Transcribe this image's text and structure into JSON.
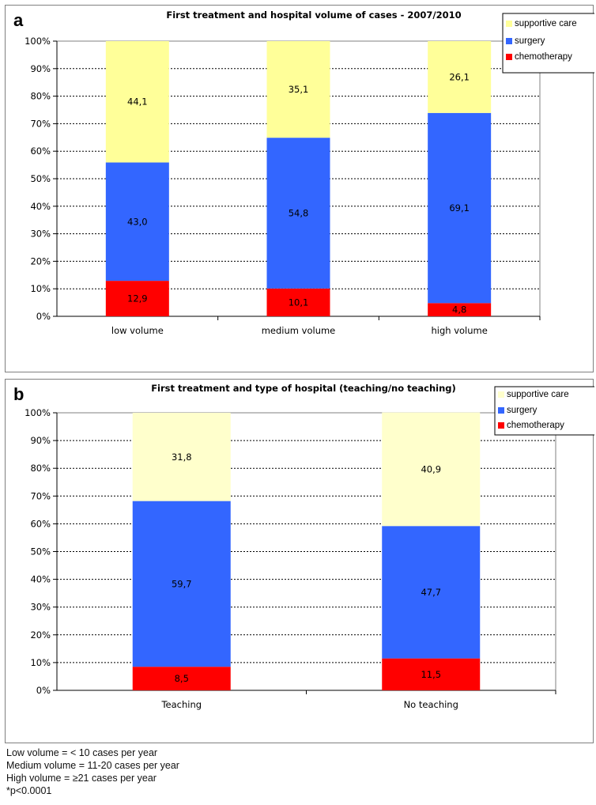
{
  "chart_data": [
    {
      "panel_letter": "a",
      "type": "bar",
      "stacked": true,
      "percent": true,
      "title": "First treatment and hospital volume of cases - 2007/2010",
      "categories": [
        "low volume",
        "medium volume",
        "high volume"
      ],
      "series": [
        {
          "name": "chemotherapy",
          "color": "#ff0000",
          "values": [
            12.9,
            10.1,
            4.8
          ],
          "labels": [
            "12,9",
            "10,1",
            "4,8"
          ]
        },
        {
          "name": "surgery",
          "color": "#3366ff",
          "values": [
            43.0,
            54.8,
            69.1
          ],
          "labels": [
            "43,0",
            "54,8",
            "69,1"
          ]
        },
        {
          "name": "supportive care",
          "color": "#ffff99",
          "values": [
            44.1,
            35.1,
            26.1
          ],
          "labels": [
            "44,1",
            "35,1",
            "26,1"
          ]
        }
      ],
      "legend_items": [
        "supportive care",
        "surgery",
        "chemotherapy"
      ],
      "yticks": [
        "0%",
        "10%",
        "20%",
        "30%",
        "40%",
        "50%",
        "60%",
        "70%",
        "80%",
        "90%",
        "100%"
      ],
      "ylim": [
        0,
        100
      ],
      "grid": true,
      "legend_position": "top-right"
    },
    {
      "panel_letter": "b",
      "type": "bar",
      "stacked": true,
      "percent": true,
      "title": "First treatment and type of hospital (teaching/no teaching)",
      "categories": [
        "Teaching",
        "No teaching"
      ],
      "series": [
        {
          "name": "chemotherapy",
          "color": "#ff0000",
          "values": [
            8.5,
            11.5
          ],
          "labels": [
            "8,5",
            "11,5"
          ]
        },
        {
          "name": "surgery",
          "color": "#3366ff",
          "values": [
            59.7,
            47.7
          ],
          "labels": [
            "59,7",
            "47,7"
          ]
        },
        {
          "name": "supportive care",
          "color": "#ffffcc",
          "values": [
            31.8,
            40.9
          ],
          "labels": [
            "31,8",
            "40,9"
          ]
        }
      ],
      "legend_items": [
        "supportive care",
        "surgery",
        "chemotherapy"
      ],
      "yticks": [
        "0%",
        "10%",
        "20%",
        "30%",
        "40%",
        "50%",
        "60%",
        "70%",
        "80%",
        "90%",
        "100%"
      ],
      "ylim": [
        0,
        100
      ],
      "grid": true,
      "legend_position": "top-right"
    }
  ],
  "footnotes": [
    "Low volume = < 10 cases per year",
    "Medium volume = 11-20 cases per year",
    "High volume = ≥21 cases per year",
    "*p<0.0001"
  ]
}
